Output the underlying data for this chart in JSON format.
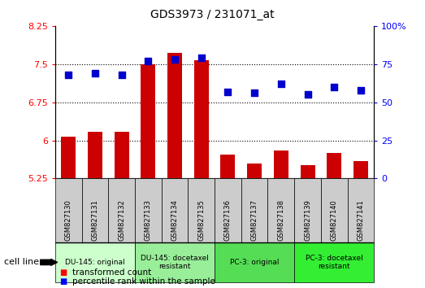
{
  "title": "GDS3973 / 231071_at",
  "samples": [
    "GSM827130",
    "GSM827131",
    "GSM827132",
    "GSM827133",
    "GSM827134",
    "GSM827135",
    "GSM827136",
    "GSM827137",
    "GSM827138",
    "GSM827139",
    "GSM827140",
    "GSM827141"
  ],
  "bar_values": [
    6.08,
    6.17,
    6.17,
    7.5,
    7.72,
    7.58,
    5.72,
    5.55,
    5.8,
    5.52,
    5.75,
    5.6
  ],
  "dot_values": [
    68,
    69,
    68,
    77,
    78,
    79,
    57,
    56,
    62,
    55,
    60,
    58
  ],
  "ylim_left": [
    5.25,
    8.25
  ],
  "ylim_right": [
    0,
    100
  ],
  "yticks_left": [
    5.25,
    6.0,
    6.75,
    7.5,
    8.25
  ],
  "yticks_right": [
    0,
    25,
    50,
    75,
    100
  ],
  "ytick_labels_left": [
    "5.25",
    "6",
    "6.75",
    "7.5",
    "8.25"
  ],
  "ytick_labels_right": [
    "0",
    "25",
    "50",
    "75",
    "100%"
  ],
  "bar_color": "#cc0000",
  "dot_color": "#0000cc",
  "bar_bottom": 5.25,
  "groups": [
    {
      "label": "DU-145: original",
      "start": 0,
      "end": 3,
      "color": "#ccffcc"
    },
    {
      "label": "DU-145: docetaxel\nresistant",
      "start": 3,
      "end": 6,
      "color": "#99ee99"
    },
    {
      "label": "PC-3: original",
      "start": 6,
      "end": 9,
      "color": "#55dd55"
    },
    {
      "label": "PC-3: docetaxel\nresistant",
      "start": 9,
      "end": 12,
      "color": "#33ee33"
    }
  ],
  "cell_line_label": "cell line",
  "legend_bar": "transformed count",
  "legend_dot": "percentile rank within the sample",
  "bar_width": 0.55,
  "dot_size": 35,
  "sample_box_color": "#cccccc",
  "grid_yticks": [
    6.0,
    6.75,
    7.5
  ]
}
